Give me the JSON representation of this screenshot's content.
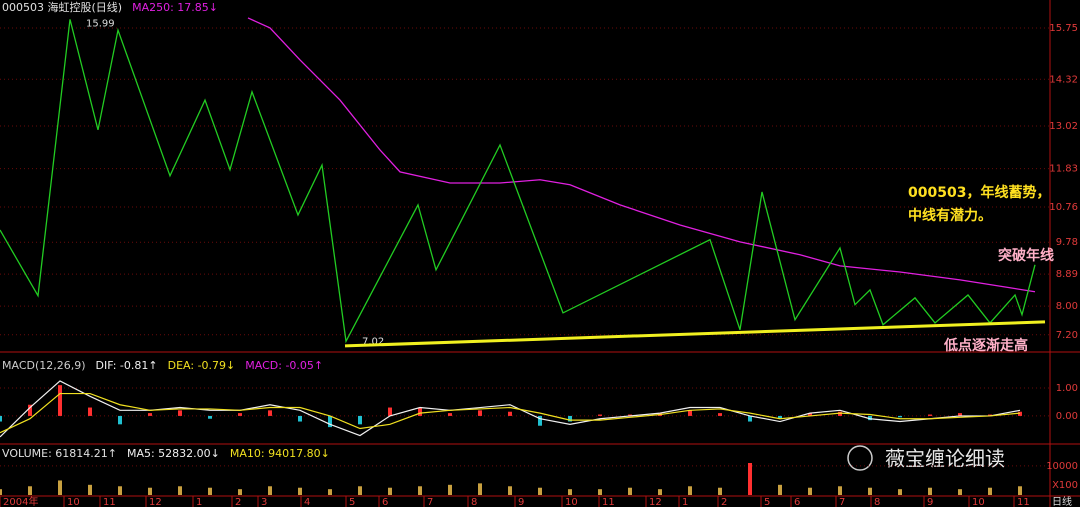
{
  "chart_data": [
    {
      "type": "price",
      "title": "000503 海虹控股(日线)",
      "xlim": [
        0,
        525
      ],
      "ylim": [
        6.86,
        16.39
      ],
      "yticks": [
        15.75,
        14.32,
        13.02,
        11.83,
        10.76,
        9.78,
        8.89,
        {
          "value": 8,
          "label": "8.00"
        },
        {
          "value": 7.2,
          "label": "7.20"
        }
      ],
      "grid": true,
      "series": [
        {
          "name": "MA250: 17.85↓",
          "color": "#e020e0",
          "x": [
            124,
            135,
            150,
            170,
            190,
            200,
            225,
            250,
            270,
            285,
            310,
            340,
            370,
            400,
            420,
            450,
            480,
            505,
            517.5
          ],
          "values": [
            16.03,
            15.75,
            14.86,
            13.74,
            12.35,
            11.74,
            11.43,
            11.43,
            11.52,
            11.38,
            10.82,
            10.26,
            9.79,
            9.43,
            9.12,
            8.95,
            8.73,
            8.51,
            8.4
          ]
        },
        {
          "color": "#22cc22",
          "x": [
            0,
            19,
            35,
            49,
            59,
            85,
            102.5,
            115,
            126,
            149,
            161,
            173,
            209,
            218,
            250,
            281.5,
            355,
            370,
            381,
            397.5,
            420,
            427.5,
            435,
            441.5,
            457.5,
            467.5,
            484,
            495,
            507.5,
            511,
            517.5
          ],
          "values": [
            10.12,
            8.29,
            15.99,
            12.91,
            15.69,
            11.63,
            13.74,
            11.8,
            13.97,
            10.54,
            11.93,
            7.02,
            10.82,
            9.01,
            12.49,
            7.81,
            9.85,
            7.34,
            11.18,
            7.62,
            9.62,
            8.04,
            8.45,
            7.48,
            8.23,
            7.53,
            8.31,
            7.53,
            8.31,
            7.76,
            9.15
          ],
          "value_labels": [
            null,
            null,
            "15.99",
            null,
            null,
            null,
            null,
            null,
            null,
            null,
            null,
            "7.02",
            null,
            null,
            null,
            null,
            null,
            null,
            null,
            null,
            null,
            null,
            null,
            null,
            null,
            null,
            null,
            null,
            null,
            null,
            null
          ]
        },
        {
          "color": "#f0f020",
          "x": [
            172.5,
            522.5
          ],
          "values": [
            6.89,
            7.56
          ]
        }
      ],
      "annotations": [
        {
          "text": "000503，年线蓄势，",
          "color": "#ffe020"
        },
        {
          "text": "中线有潜力。",
          "color": "#ffe020"
        },
        {
          "text": "突破年线",
          "color": "#ffb0c8"
        },
        {
          "text": "低点逐渐走高",
          "color": "#ffb0c8"
        }
      ]
    },
    {
      "type": "macd",
      "title": "MACD(12,26,9)",
      "xlim": [
        0,
        525
      ],
      "ylim": [
        -0.86,
        2.07
      ],
      "yticks": [
        {
          "value": 1,
          "label": "1.00"
        },
        {
          "value": 0,
          "label": "0.00"
        }
      ],
      "x": [
        0,
        15,
        30,
        45,
        60,
        75,
        90,
        105,
        120,
        135,
        150,
        165,
        180,
        195,
        210,
        225,
        240,
        255,
        270,
        285,
        300,
        315,
        330,
        345,
        360,
        375,
        390,
        405,
        420,
        435,
        450,
        465,
        480,
        495,
        510
      ],
      "series": [
        {
          "name": "DIF: -0.81↑",
          "color": "#f0f0f0",
          "values": [
            -0.75,
            0.3,
            1.25,
            0.7,
            0.2,
            0.2,
            0.3,
            0.2,
            0.2,
            0.4,
            0.2,
            -0.3,
            -0.7,
            0.0,
            0.3,
            0.2,
            0.3,
            0.4,
            -0.1,
            -0.3,
            -0.1,
            0.0,
            0.1,
            0.3,
            0.3,
            0.0,
            -0.2,
            0.1,
            0.2,
            -0.1,
            -0.2,
            -0.1,
            0.0,
            0.0,
            0.2
          ]
        },
        {
          "name": "DEA: -0.79↓",
          "color": "#f0e020",
          "values": [
            -0.6,
            -0.1,
            0.8,
            0.8,
            0.4,
            0.2,
            0.25,
            0.25,
            0.2,
            0.3,
            0.3,
            0.0,
            -0.45,
            -0.3,
            0.1,
            0.2,
            0.25,
            0.3,
            0.1,
            -0.15,
            -0.15,
            -0.05,
            0.05,
            0.2,
            0.25,
            0.1,
            -0.1,
            0.0,
            0.1,
            0.05,
            -0.1,
            -0.1,
            -0.05,
            0.0,
            0.1
          ]
        },
        {
          "name": "MACD: -0.05↑",
          "color": "#e020e0",
          "bars": true,
          "values": [
            -0.2,
            0.4,
            1.1,
            0.3,
            -0.3,
            0.1,
            0.2,
            -0.1,
            0.1,
            0.2,
            -0.2,
            -0.4,
            -0.3,
            0.3,
            0.3,
            0.1,
            0.2,
            0.15,
            -0.35,
            -0.2,
            0.05,
            0.05,
            0.1,
            0.2,
            0.1,
            -0.2,
            -0.1,
            0.1,
            0.15,
            -0.15,
            -0.05,
            0.05,
            0.1,
            0.05,
            0.15
          ]
        }
      ]
    },
    {
      "type": "volume",
      "title": "VOLUME: 61814.21↑",
      "legend": [
        {
          "text": "MA5: 52832.00↓",
          "color": "#f0f0f0"
        },
        {
          "text": "MA10: 94017.80↓",
          "color": "#f0e020"
        }
      ],
      "xlim": [
        0,
        525
      ],
      "ylim": [
        0,
        16500
      ],
      "yticks": [
        10000
      ],
      "yunit": "X100",
      "x": [
        0,
        15,
        30,
        45,
        60,
        75,
        90,
        105,
        120,
        135,
        150,
        165,
        180,
        195,
        210,
        225,
        240,
        255,
        270,
        285,
        300,
        315,
        330,
        345,
        360,
        375,
        390,
        405,
        420,
        435,
        450,
        465,
        480,
        495,
        510
      ],
      "values": [
        2000,
        3000,
        5000,
        3500,
        3000,
        2500,
        3000,
        2500,
        2000,
        3000,
        2500,
        2000,
        3000,
        2500,
        3000,
        3500,
        4000,
        3000,
        2500,
        2000,
        2000,
        2500,
        2000,
        3000,
        2500,
        11000,
        3500,
        2500,
        3000,
        2500,
        2000,
        2500,
        2000,
        2500,
        3000
      ],
      "xticks": [
        {
          "value": 0,
          "label": "2004年"
        },
        {
          "value": 32,
          "label": "10"
        },
        {
          "value": 50,
          "label": "11"
        },
        {
          "value": 73,
          "label": "12"
        },
        {
          "value": 96.5,
          "label": "1"
        },
        {
          "value": 116,
          "label": "2"
        },
        {
          "value": 129,
          "label": "3"
        },
        {
          "value": 150.5,
          "label": "4"
        },
        {
          "value": 173,
          "label": "5"
        },
        {
          "value": 189.5,
          "label": "6"
        },
        {
          "value": 212,
          "label": "7"
        },
        {
          "value": 234,
          "label": "8"
        },
        {
          "value": 257.5,
          "label": "9"
        },
        {
          "value": 281,
          "label": "10"
        },
        {
          "value": 299.5,
          "label": "11"
        },
        {
          "value": 323,
          "label": "12"
        },
        {
          "value": 339.5,
          "label": "1"
        },
        {
          "value": 359,
          "label": "2"
        },
        {
          "value": 380.5,
          "label": "5"
        },
        {
          "value": 395.5,
          "label": "6"
        },
        {
          "value": 418,
          "label": "7"
        },
        {
          "value": 435.5,
          "label": "8"
        },
        {
          "value": 462,
          "label": "9"
        },
        {
          "value": 484.5,
          "label": "10"
        },
        {
          "value": 507,
          "label": "11"
        }
      ],
      "period": "日线"
    }
  ],
  "watermark": "薇宝缠论细读"
}
